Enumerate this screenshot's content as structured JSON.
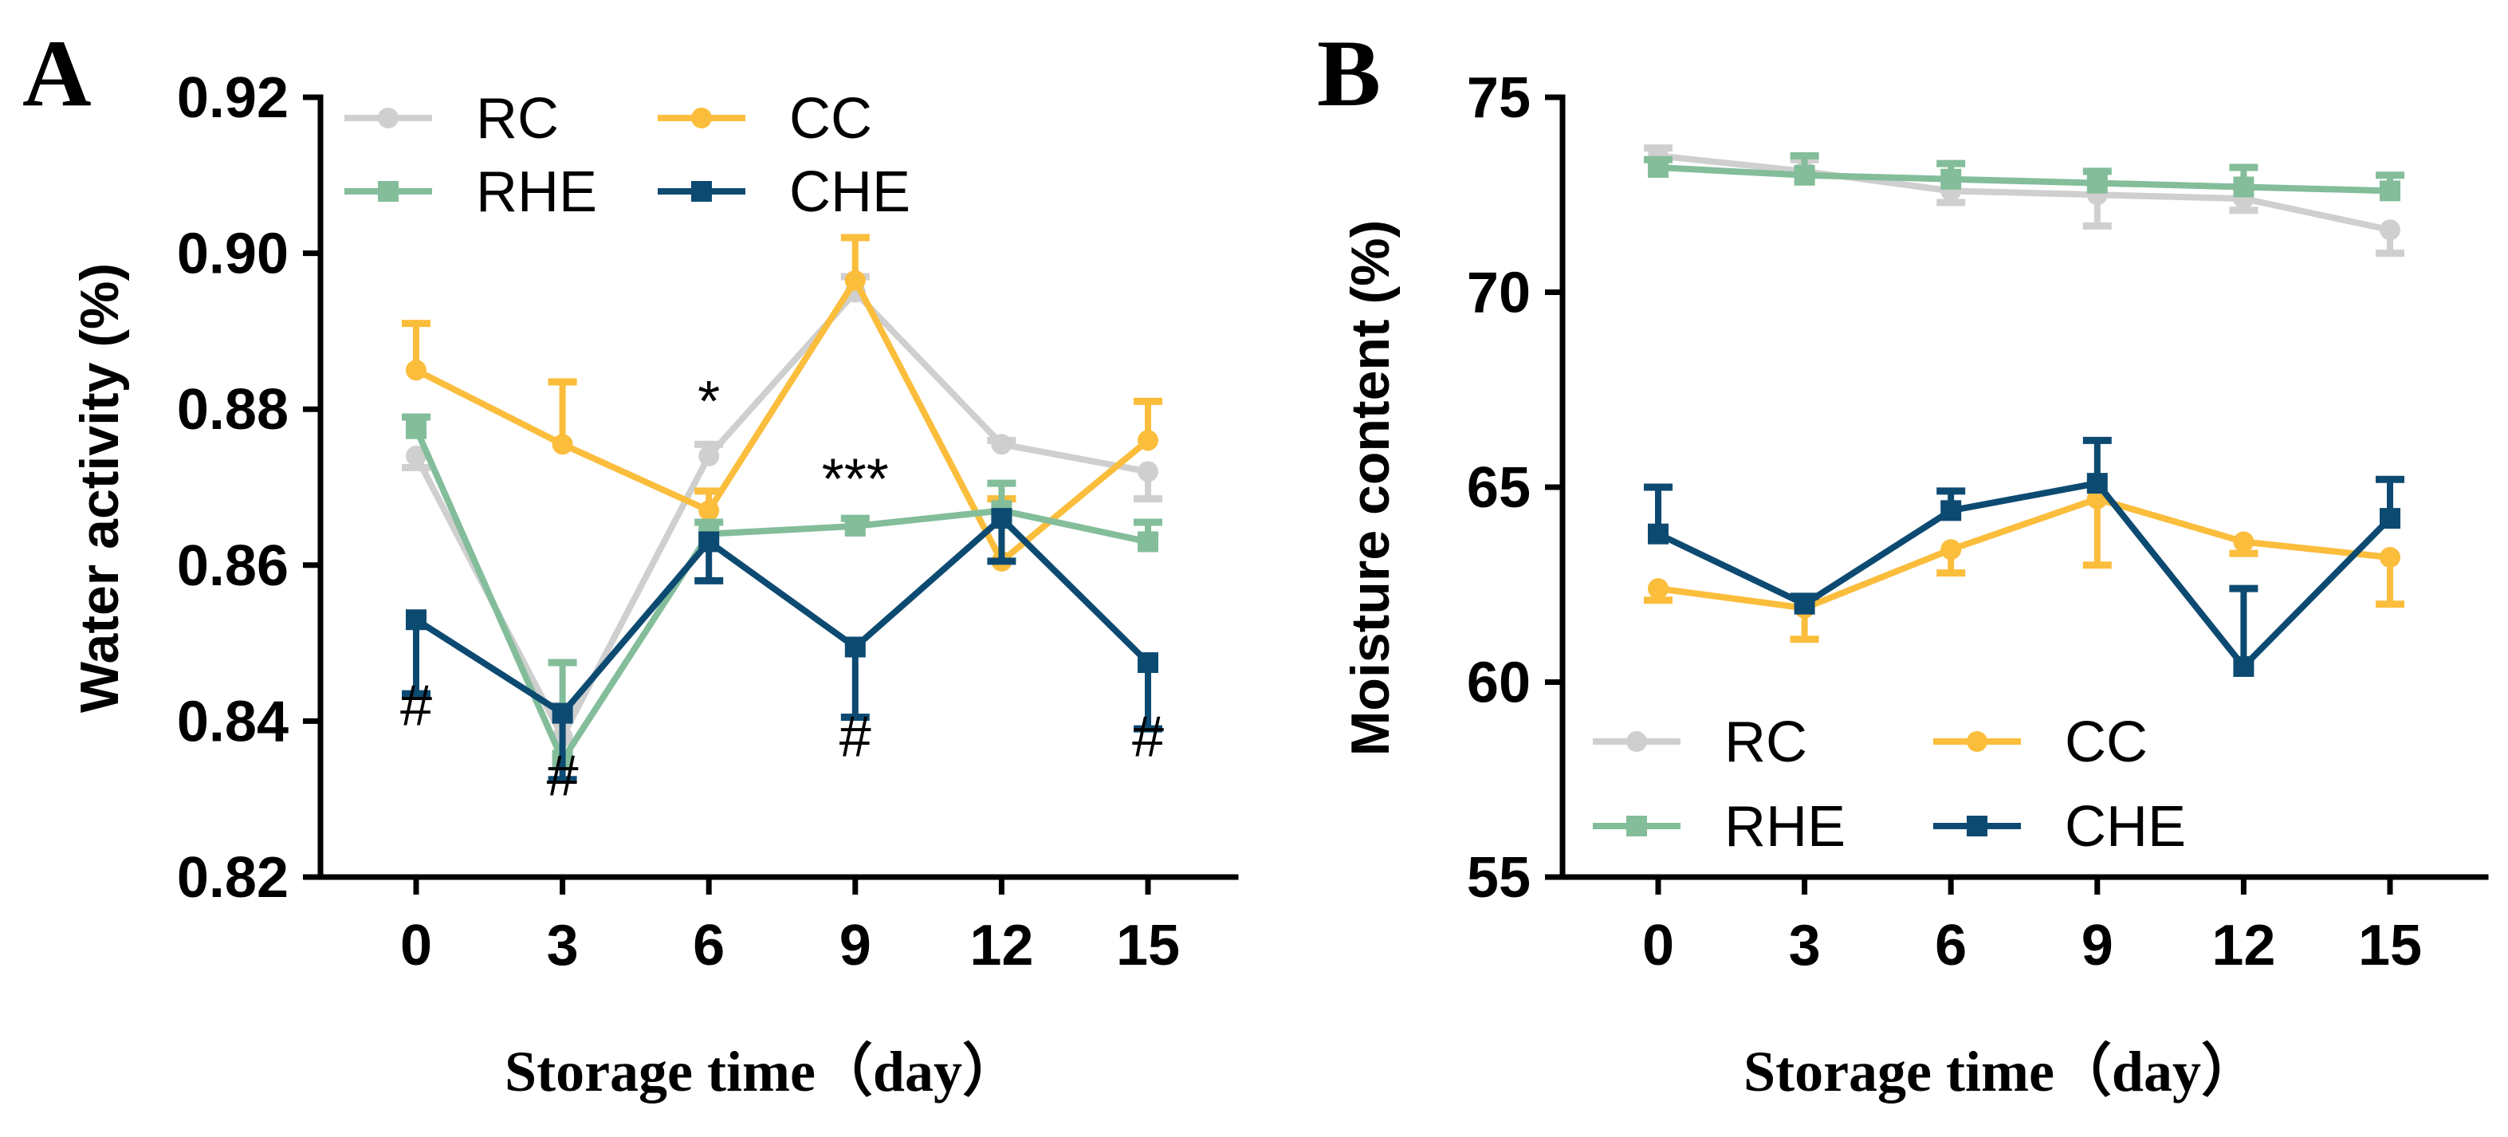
{
  "colors": {
    "RC": "#cfcfcf",
    "RHE": "#83bd9a",
    "CC": "#fbbd3c",
    "CHE": "#0d4a72"
  },
  "chart_data": [
    {
      "panel": "A",
      "type": "line",
      "ylabel": "Water activity (%)",
      "xlabel": "Storage time（day）",
      "x": [
        0,
        3,
        6,
        9,
        12,
        15
      ],
      "xticks": [
        "0",
        "3",
        "6",
        "9",
        "12",
        "15"
      ],
      "yticks": [
        "0.82",
        "0.84",
        "0.86",
        "0.88",
        "0.90",
        "0.92"
      ],
      "ylim": [
        0.82,
        0.92
      ],
      "legend_position": "top",
      "series": [
        {
          "name": "RC",
          "marker": "circle",
          "values": [
            0.874,
            0.838,
            0.874,
            0.895,
            0.8755,
            0.872
          ],
          "errors": [
            0.0015,
            0.004,
            0.0015,
            0.002,
            0.0005,
            0.0035
          ],
          "error_dir": [
            -1,
            1,
            1,
            1,
            1,
            -1
          ]
        },
        {
          "name": "CC",
          "marker": "circle",
          "values": [
            0.885,
            0.8755,
            0.867,
            0.8965,
            0.8605,
            0.876
          ],
          "errors": [
            0.006,
            0.008,
            0.0025,
            0.0055,
            0.008,
            0.005
          ],
          "error_dir": [
            1,
            1,
            1,
            1,
            1,
            1
          ]
        },
        {
          "name": "RHE",
          "marker": "square",
          "values": [
            0.8775,
            0.835,
            0.864,
            0.865,
            0.867,
            0.863
          ],
          "errors": [
            0.0015,
            0.0125,
            0.0015,
            0.001,
            0.0035,
            0.0025
          ],
          "error_dir": [
            1,
            1,
            1,
            1,
            1,
            1
          ]
        },
        {
          "name": "CHE",
          "marker": "square",
          "values": [
            0.853,
            0.841,
            0.863,
            0.8495,
            0.866,
            0.8475
          ],
          "errors": [
            0.0095,
            0.0085,
            0.005,
            0.009,
            0.0055,
            0.0085
          ],
          "error_dir": [
            -1,
            -1,
            -1,
            -1,
            -1,
            -1
          ]
        }
      ],
      "annotations": [
        {
          "text": "#",
          "x": 0,
          "y": 0.8395
        },
        {
          "text": "#",
          "x": 3,
          "y": 0.8305
        },
        {
          "text": "*",
          "x": 6,
          "y": 0.8785
        },
        {
          "text": "***",
          "x": 9,
          "y": 0.8685
        },
        {
          "text": "#",
          "x": 9,
          "y": 0.8355
        },
        {
          "text": "#",
          "x": 15,
          "y": 0.8355
        }
      ]
    },
    {
      "panel": "B",
      "type": "line",
      "ylabel": "Moisture content (%)",
      "xlabel": "Storage time（day）",
      "x": [
        0,
        3,
        6,
        9,
        12,
        15
      ],
      "xticks": [
        "0",
        "3",
        "6",
        "9",
        "12",
        "15"
      ],
      "yticks": [
        "55",
        "60",
        "65",
        "70",
        "75"
      ],
      "ylim": [
        55,
        75
      ],
      "legend_position": "bottom",
      "series": [
        {
          "name": "RC",
          "marker": "circle",
          "values": [
            73.5,
            73.1,
            72.6,
            72.5,
            72.4,
            71.6
          ],
          "errors": [
            0.2,
            0.3,
            0.3,
            0.8,
            0.3,
            0.6
          ],
          "error_dir": [
            1,
            1,
            -1,
            -1,
            -1,
            -1
          ]
        },
        {
          "name": "CC",
          "marker": "circle",
          "values": [
            62.4,
            61.9,
            63.4,
            64.7,
            63.6,
            63.2
          ],
          "errors": [
            0.3,
            0.8,
            0.6,
            1.7,
            0.3,
            1.2
          ],
          "error_dir": [
            -1,
            -1,
            -1,
            -1,
            -1,
            -1
          ]
        },
        {
          "name": "RHE",
          "marker": "square",
          "values": [
            73.2,
            73.0,
            72.9,
            72.8,
            72.7,
            72.6
          ],
          "errors": [
            0.2,
            0.5,
            0.4,
            0.3,
            0.5,
            0.4
          ],
          "error_dir": [
            1,
            1,
            1,
            1,
            1,
            1
          ]
        },
        {
          "name": "CHE",
          "marker": "square",
          "values": [
            63.8,
            62.0,
            64.4,
            65.1,
            60.4,
            64.2
          ],
          "errors": [
            1.2,
            0.2,
            0.5,
            1.1,
            2.0,
            1.0
          ],
          "error_dir": [
            1,
            1,
            1,
            1,
            1,
            1
          ]
        }
      ],
      "annotations": []
    }
  ]
}
